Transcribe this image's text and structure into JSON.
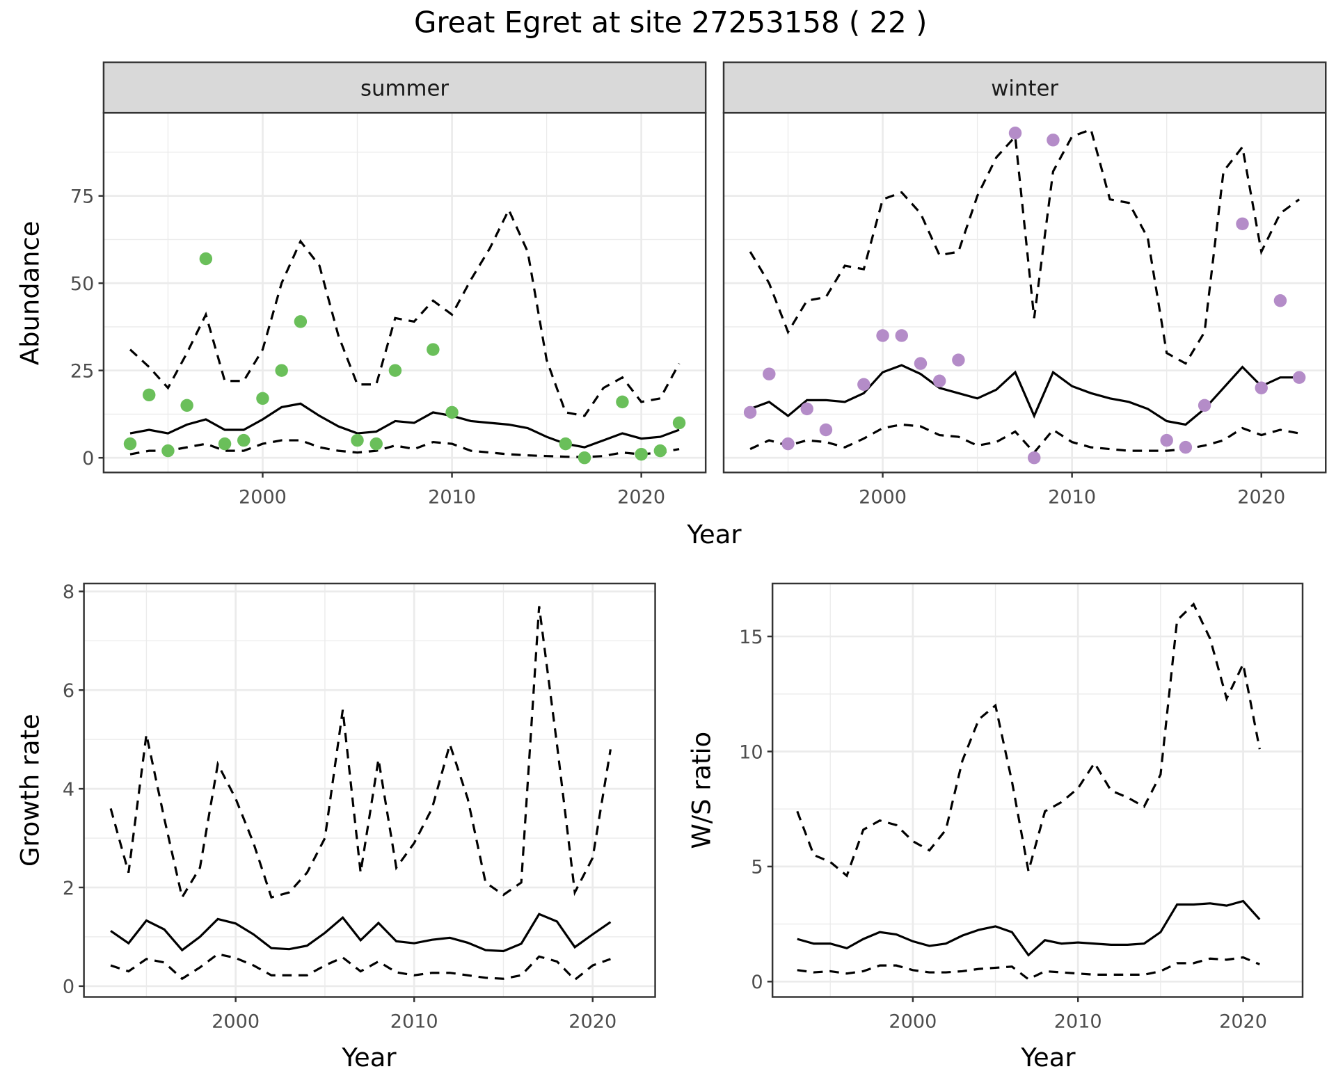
{
  "title": "Great Egret at site 27253158 ( 22 )",
  "colors": {
    "summer_points": "#6abf5a",
    "winter_points": "#b48cc8",
    "strip_bg": "#d9d9d9",
    "grid": "#ebebeb"
  },
  "chart_data": [
    {
      "type": "line",
      "facet": "summer",
      "xlabel": "Year",
      "ylabel": "Abundance",
      "xlim": [
        1991.6,
        2023.4
      ],
      "ylim": [
        -4.2,
        98.8
      ],
      "xticks": [
        2000,
        2010,
        2020
      ],
      "yticks": [
        0,
        25,
        50,
        75
      ],
      "grid": true,
      "points": {
        "x": [
          1993,
          1994,
          1995,
          1996,
          1997,
          1998,
          1999,
          2000,
          2001,
          2002,
          2005,
          2006,
          2007,
          2009,
          2010,
          2016,
          2017,
          2019,
          2020,
          2021,
          2022
        ],
        "y": [
          4,
          18,
          2,
          15,
          57,
          4,
          5,
          17,
          25,
          39,
          5,
          4,
          25,
          31,
          13,
          4,
          0,
          16,
          1,
          2,
          10
        ]
      },
      "x": [
        1993,
        1994,
        1995,
        1996,
        1997,
        1998,
        1999,
        2000,
        2001,
        2002,
        2003,
        2004,
        2005,
        2006,
        2007,
        2008,
        2009,
        2010,
        2011,
        2012,
        2013,
        2014,
        2015,
        2016,
        2017,
        2018,
        2019,
        2020,
        2021,
        2022
      ],
      "mean": [
        7,
        8,
        7,
        9.5,
        11,
        8,
        8,
        11,
        14.5,
        15.5,
        12,
        9,
        7,
        7.5,
        10.5,
        10,
        13,
        12,
        10.5,
        10,
        9.5,
        8.5,
        6,
        4,
        3,
        5,
        7,
        5.5,
        6,
        8
      ],
      "upper": [
        31,
        26,
        20,
        30,
        41,
        22,
        22,
        31,
        50,
        62,
        55,
        35,
        21,
        21,
        40,
        39,
        45,
        41,
        51,
        60,
        71,
        59,
        28,
        13,
        12,
        20,
        23,
        16,
        17,
        27
      ],
      "lower": [
        1,
        2,
        2,
        3,
        4,
        2,
        2,
        4,
        5,
        5,
        3,
        2,
        1.5,
        2,
        3.5,
        2.5,
        4.5,
        4,
        2,
        1.5,
        1,
        0.7,
        0.5,
        0.3,
        0.2,
        0.5,
        1.5,
        1,
        1.5,
        2.5
      ]
    },
    {
      "type": "line",
      "facet": "winter",
      "xlabel": "Year",
      "ylabel": "Abundance",
      "xlim": [
        1991.6,
        2023.4
      ],
      "ylim": [
        -4.2,
        98.8
      ],
      "xticks": [
        2000,
        2010,
        2020
      ],
      "yticks": [
        0,
        25,
        50,
        75
      ],
      "grid": true,
      "points": {
        "x": [
          1993,
          1994,
          1995,
          1996,
          1997,
          1999,
          2000,
          2001,
          2002,
          2003,
          2004,
          2007,
          2008,
          2009,
          2015,
          2016,
          2017,
          2019,
          2020,
          2021,
          2022
        ],
        "y": [
          13,
          24,
          4,
          14,
          8,
          21,
          35,
          35,
          27,
          22,
          28,
          93,
          0,
          91,
          5,
          3,
          15,
          67,
          20,
          45,
          23
        ]
      },
      "x": [
        1993,
        1994,
        1995,
        1996,
        1997,
        1998,
        1999,
        2000,
        2001,
        2002,
        2003,
        2004,
        2005,
        2006,
        2007,
        2008,
        2009,
        2010,
        2011,
        2012,
        2013,
        2014,
        2015,
        2016,
        2017,
        2018,
        2019,
        2020,
        2021,
        2022
      ],
      "mean": [
        14,
        16,
        12,
        16.5,
        16.5,
        16,
        18.5,
        24.5,
        26.5,
        24,
        20,
        18.5,
        17,
        19.5,
        24.5,
        12,
        24.5,
        20.5,
        18.5,
        17,
        16,
        14,
        10.5,
        9.5,
        14,
        20,
        26,
        20.5,
        23,
        23
      ],
      "upper": [
        59,
        50,
        36,
        45,
        46,
        55,
        54,
        74,
        76,
        70,
        58,
        59,
        75,
        86,
        92,
        40,
        82,
        92,
        94,
        74,
        73,
        63,
        30,
        27,
        36,
        82,
        89,
        59,
        70,
        74
      ],
      "lower": [
        2.5,
        5,
        3.5,
        5,
        4.5,
        3,
        5.5,
        8.5,
        9.5,
        9,
        6.5,
        6,
        3.5,
        4.5,
        7.5,
        1.5,
        8,
        4.5,
        3,
        2.5,
        2,
        2,
        2,
        2.5,
        3.5,
        5,
        8.5,
        6.5,
        8,
        7
      ]
    },
    {
      "type": "line",
      "xlabel": "Year",
      "ylabel": "Growth rate",
      "xlim": [
        1991.5,
        2023.5
      ],
      "ylim": [
        -0.22,
        8.16
      ],
      "xticks": [
        2000,
        2010,
        2020
      ],
      "yticks": [
        0,
        2,
        4,
        6,
        8
      ],
      "grid": true,
      "x": [
        1993,
        1994,
        1995,
        1996,
        1997,
        1998,
        1999,
        2000,
        2001,
        2002,
        2003,
        2004,
        2005,
        2006,
        2007,
        2008,
        2009,
        2010,
        2011,
        2012,
        2013,
        2014,
        2015,
        2016,
        2017,
        2018,
        2019,
        2020,
        2021
      ],
      "mean": [
        1.12,
        0.87,
        1.33,
        1.15,
        0.73,
        1.0,
        1.36,
        1.27,
        1.05,
        0.77,
        0.75,
        0.82,
        1.08,
        1.39,
        0.93,
        1.28,
        0.91,
        0.87,
        0.94,
        0.98,
        0.88,
        0.73,
        0.71,
        0.86,
        1.46,
        1.31,
        0.79,
        1.05,
        1.3
      ],
      "upper": [
        3.6,
        2.3,
        5.1,
        3.4,
        1.8,
        2.4,
        4.5,
        3.8,
        2.9,
        1.8,
        1.9,
        2.3,
        3.0,
        5.6,
        2.3,
        4.6,
        2.4,
        2.9,
        3.6,
        4.9,
        3.8,
        2.1,
        1.85,
        2.1,
        7.7,
        4.9,
        1.9,
        2.6,
        4.8
      ],
      "lower": [
        0.42,
        0.3,
        0.55,
        0.48,
        0.15,
        0.38,
        0.65,
        0.57,
        0.42,
        0.22,
        0.22,
        0.22,
        0.42,
        0.58,
        0.3,
        0.5,
        0.28,
        0.22,
        0.27,
        0.27,
        0.22,
        0.17,
        0.15,
        0.22,
        0.6,
        0.5,
        0.13,
        0.42,
        0.55
      ]
    },
    {
      "type": "line",
      "xlabel": "Year",
      "ylabel": "W/S ratio",
      "xlim": [
        1991.5,
        2023.6
      ],
      "ylim": [
        -0.67,
        17.3
      ],
      "xticks": [
        2000,
        2010,
        2020
      ],
      "yticks": [
        0,
        5,
        10,
        15
      ],
      "grid": true,
      "x": [
        1993,
        1994,
        1995,
        1996,
        1997,
        1998,
        1999,
        2000,
        2001,
        2002,
        2003,
        2004,
        2005,
        2006,
        2007,
        2008,
        2009,
        2010,
        2011,
        2012,
        2013,
        2014,
        2015,
        2016,
        2017,
        2018,
        2019,
        2020,
        2021
      ],
      "mean": [
        1.85,
        1.65,
        1.65,
        1.45,
        1.85,
        2.15,
        2.05,
        1.75,
        1.55,
        1.65,
        2.0,
        2.25,
        2.4,
        2.15,
        1.15,
        1.8,
        1.65,
        1.7,
        1.65,
        1.6,
        1.6,
        1.65,
        2.15,
        3.35,
        3.35,
        3.4,
        3.3,
        3.5,
        2.7
      ],
      "upper": [
        7.4,
        5.5,
        5.2,
        4.6,
        6.6,
        7.0,
        6.8,
        6.1,
        5.7,
        6.6,
        9.6,
        11.4,
        12.0,
        8.7,
        4.8,
        7.4,
        7.8,
        8.4,
        9.5,
        8.3,
        8.0,
        7.6,
        9.0,
        15.7,
        16.4,
        14.9,
        12.3,
        13.8,
        10.1
      ],
      "lower": [
        0.5,
        0.4,
        0.45,
        0.35,
        0.45,
        0.7,
        0.7,
        0.5,
        0.4,
        0.4,
        0.45,
        0.55,
        0.6,
        0.65,
        0.1,
        0.45,
        0.4,
        0.35,
        0.3,
        0.3,
        0.3,
        0.3,
        0.45,
        0.8,
        0.8,
        1.0,
        0.95,
        1.05,
        0.75
      ]
    }
  ]
}
